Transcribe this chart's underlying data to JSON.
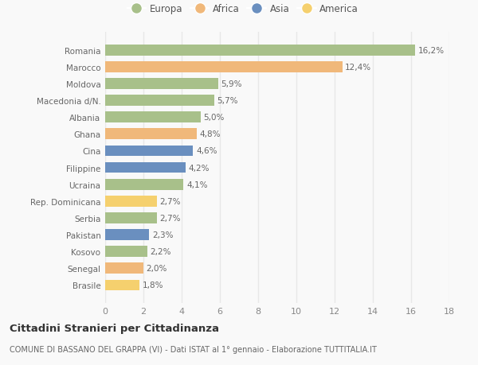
{
  "categories": [
    "Romania",
    "Marocco",
    "Moldova",
    "Macedonia d/N.",
    "Albania",
    "Ghana",
    "Cina",
    "Filippine",
    "Ucraina",
    "Rep. Dominicana",
    "Serbia",
    "Pakistan",
    "Kosovo",
    "Senegal",
    "Brasile"
  ],
  "values": [
    16.2,
    12.4,
    5.9,
    5.7,
    5.0,
    4.8,
    4.6,
    4.2,
    4.1,
    2.7,
    2.7,
    2.3,
    2.2,
    2.0,
    1.8
  ],
  "labels": [
    "16,2%",
    "12,4%",
    "5,9%",
    "5,7%",
    "5,0%",
    "4,8%",
    "4,6%",
    "4,2%",
    "4,1%",
    "2,7%",
    "2,7%",
    "2,3%",
    "2,2%",
    "2,0%",
    "1,8%"
  ],
  "continents": [
    "Europa",
    "Africa",
    "Europa",
    "Europa",
    "Europa",
    "Africa",
    "Asia",
    "Asia",
    "Europa",
    "America",
    "Europa",
    "Asia",
    "Europa",
    "Africa",
    "America"
  ],
  "colors": {
    "Europa": "#a8c08a",
    "Africa": "#f0b87a",
    "Asia": "#6a8fbf",
    "America": "#f5d06e"
  },
  "legend_order": [
    "Europa",
    "Africa",
    "Asia",
    "America"
  ],
  "title": "Cittadini Stranieri per Cittadinanza",
  "subtitle": "COMUNE DI BASSANO DEL GRAPPA (VI) - Dati ISTAT al 1° gennaio - Elaborazione TUTTITALIA.IT",
  "xlim": [
    0,
    18
  ],
  "xticks": [
    0,
    2,
    4,
    6,
    8,
    10,
    12,
    14,
    16,
    18
  ],
  "background_color": "#f9f9f9",
  "grid_color": "#e8e8e8"
}
